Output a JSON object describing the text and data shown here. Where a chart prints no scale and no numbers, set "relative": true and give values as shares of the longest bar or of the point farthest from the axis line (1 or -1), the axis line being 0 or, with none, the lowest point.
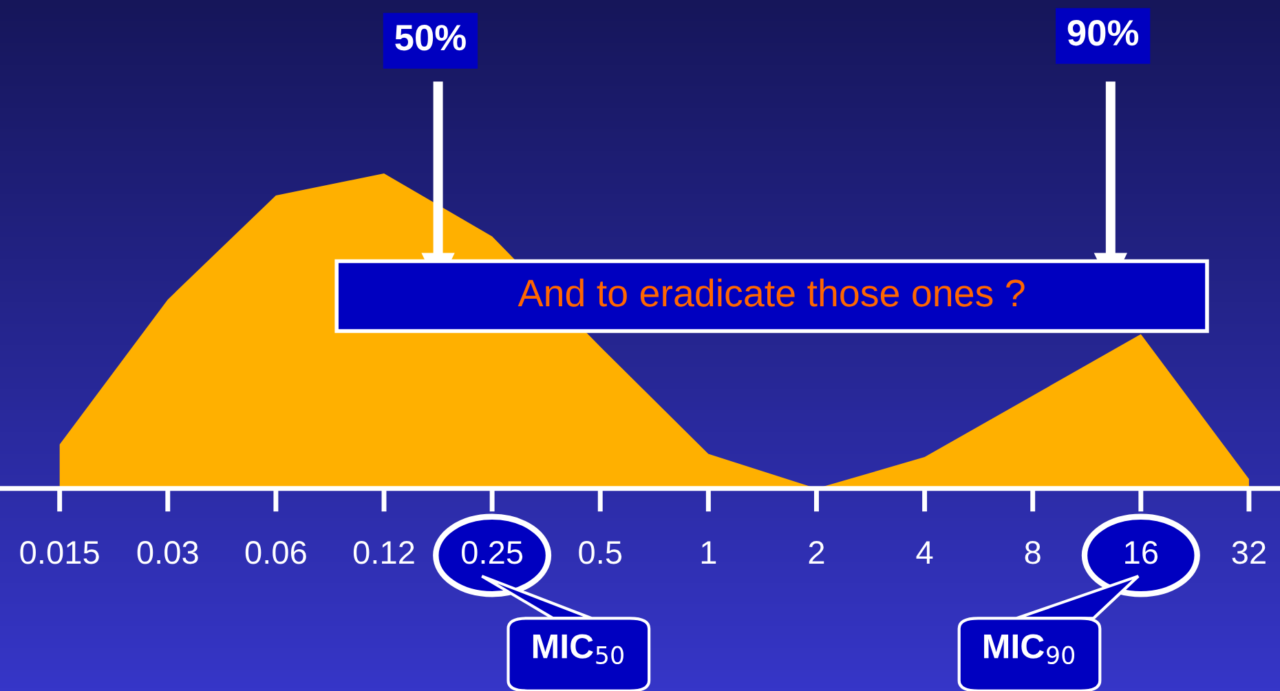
{
  "chart_data": {
    "type": "area",
    "relative": true,
    "categories": [
      "0.015",
      "0.03",
      "0.06",
      "0.12",
      "0.25",
      "0.5",
      "1",
      "2",
      "4",
      "8",
      "16",
      "32"
    ],
    "series": [
      {
        "color": "#ffb000",
        "values": [
          0.14,
          0.6,
          0.93,
          1.0,
          0.8,
          0.45,
          0.11,
          0,
          0.1,
          null,
          0.49,
          0.03
        ]
      }
    ],
    "annotations": [
      "50%",
      "90%",
      "And to eradicate those ones ?",
      "MIC$_{50}$",
      "MIC$_{90}$"
    ],
    "grid": false,
    "legend": false
  }
}
